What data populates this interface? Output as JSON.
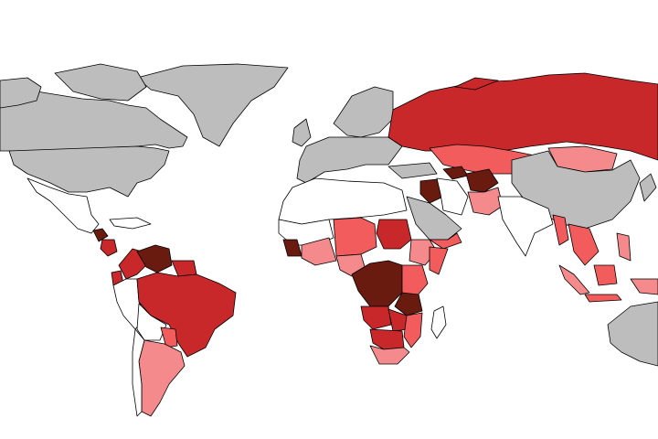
{
  "map": {
    "palette": [
      "#bdbdbd",
      "#ffffff",
      "#f58a8c",
      "#f25c5c",
      "#c8282a",
      "#6a1b10"
    ],
    "border_color": "#000000"
  }
}
